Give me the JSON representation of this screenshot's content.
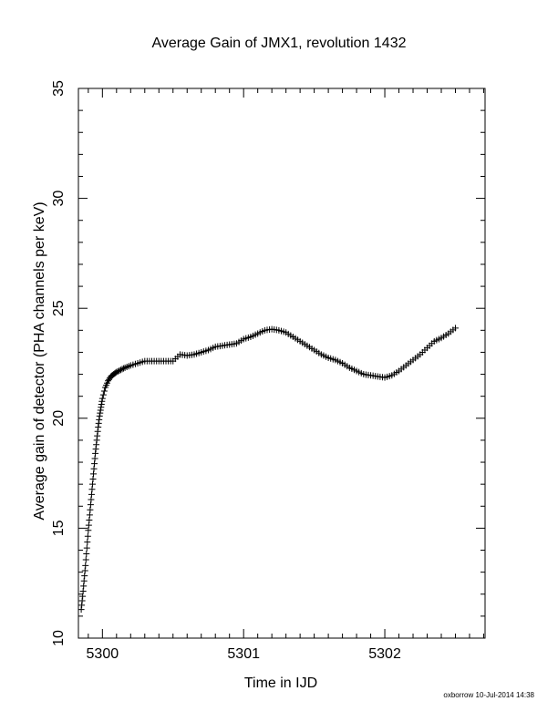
{
  "chart_data": {
    "type": "scatter",
    "title": "Average Gain of JMX1, revolution 1432",
    "xlabel": "Time in IJD",
    "ylabel": "Average gain of detector (PHA channels per keV)",
    "xlim": [
      5299.83,
      5302.71
    ],
    "ylim": [
      10,
      35
    ],
    "x_ticks": [
      5300,
      5301,
      5302
    ],
    "y_ticks": [
      10,
      15,
      20,
      25,
      30,
      35
    ],
    "marker": "plus",
    "color": "#000000",
    "grid": false,
    "series": [
      {
        "points": [
          [
            5299.85,
            11.3
          ],
          [
            5299.86,
            11.9
          ],
          [
            5299.87,
            12.6
          ],
          [
            5299.88,
            13.3
          ],
          [
            5299.89,
            14.1
          ],
          [
            5299.9,
            14.9
          ],
          [
            5299.91,
            15.6
          ],
          [
            5299.92,
            16.3
          ],
          [
            5299.93,
            17.0
          ],
          [
            5299.94,
            17.7
          ],
          [
            5299.95,
            18.4
          ],
          [
            5299.96,
            19.0
          ],
          [
            5299.97,
            19.6
          ],
          [
            5299.98,
            20.1
          ],
          [
            5299.99,
            20.5
          ],
          [
            5300.0,
            20.9
          ],
          [
            5300.02,
            21.4
          ],
          [
            5300.04,
            21.7
          ],
          [
            5300.06,
            21.9
          ],
          [
            5300.08,
            22.0
          ],
          [
            5300.1,
            22.1
          ],
          [
            5300.13,
            22.2
          ],
          [
            5300.16,
            22.3
          ],
          [
            5300.2,
            22.4
          ],
          [
            5300.25,
            22.5
          ],
          [
            5300.3,
            22.6
          ],
          [
            5300.35,
            22.6
          ],
          [
            5300.4,
            22.6
          ],
          [
            5300.45,
            22.6
          ],
          [
            5300.5,
            22.6
          ],
          [
            5300.55,
            22.9
          ],
          [
            5300.6,
            22.85
          ],
          [
            5300.65,
            22.9
          ],
          [
            5300.7,
            23.0
          ],
          [
            5300.75,
            23.1
          ],
          [
            5300.8,
            23.25
          ],
          [
            5300.85,
            23.3
          ],
          [
            5300.9,
            23.35
          ],
          [
            5300.95,
            23.4
          ],
          [
            5301.0,
            23.6
          ],
          [
            5301.05,
            23.7
          ],
          [
            5301.1,
            23.85
          ],
          [
            5301.15,
            24.0
          ],
          [
            5301.2,
            24.05
          ],
          [
            5301.25,
            24.0
          ],
          [
            5301.3,
            23.9
          ],
          [
            5301.35,
            23.7
          ],
          [
            5301.4,
            23.5
          ],
          [
            5301.45,
            23.3
          ],
          [
            5301.5,
            23.1
          ],
          [
            5301.55,
            22.9
          ],
          [
            5301.6,
            22.75
          ],
          [
            5301.65,
            22.65
          ],
          [
            5301.7,
            22.5
          ],
          [
            5301.75,
            22.3
          ],
          [
            5301.8,
            22.15
          ],
          [
            5301.85,
            22.0
          ],
          [
            5301.9,
            21.95
          ],
          [
            5301.95,
            21.9
          ],
          [
            5302.0,
            21.85
          ],
          [
            5302.05,
            21.95
          ],
          [
            5302.1,
            22.15
          ],
          [
            5302.15,
            22.4
          ],
          [
            5302.2,
            22.65
          ],
          [
            5302.25,
            22.9
          ],
          [
            5302.3,
            23.2
          ],
          [
            5302.35,
            23.5
          ],
          [
            5302.4,
            23.65
          ],
          [
            5302.45,
            23.85
          ],
          [
            5302.5,
            24.1
          ]
        ]
      }
    ]
  },
  "footer": {
    "stamp": "oxborrow 10-Jul-2014 14:38"
  }
}
